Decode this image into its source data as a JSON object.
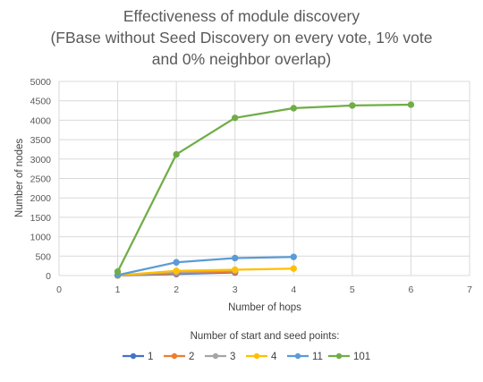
{
  "chart_data": {
    "type": "line",
    "title_lines": [
      "Effectiveness of module discovery",
      "(FBase without Seed Discovery on every vote, 1% vote",
      "and 0% neighbor overlap)"
    ],
    "xlabel": "Number of hops",
    "ylabel": "Number of nodes",
    "xlim": [
      0,
      7
    ],
    "ylim": [
      0,
      5000
    ],
    "x_ticks": [
      0,
      1,
      2,
      3,
      4,
      5,
      6,
      7
    ],
    "y_ticks": [
      0,
      500,
      1000,
      1500,
      2000,
      2500,
      3000,
      3500,
      4000,
      4500,
      5000
    ],
    "grid": true,
    "legend_title": "Number of start and seed points:",
    "legend_position": "bottom",
    "series": [
      {
        "name": "1",
        "color": "#4472C4",
        "x": [
          1,
          2,
          3
        ],
        "values": [
          1,
          40,
          80
        ]
      },
      {
        "name": "2",
        "color": "#ED7D31",
        "x": [
          1,
          2,
          3
        ],
        "values": [
          2,
          60,
          100
        ]
      },
      {
        "name": "3",
        "color": "#A5A5A5",
        "x": [
          1,
          2,
          3
        ],
        "values": [
          3,
          90,
          130
        ]
      },
      {
        "name": "4",
        "color": "#FFC000",
        "x": [
          1,
          2,
          3,
          4
        ],
        "values": [
          4,
          120,
          150,
          180
        ]
      },
      {
        "name": "11",
        "color": "#5B9BD5",
        "x": [
          1,
          2,
          3,
          4
        ],
        "values": [
          11,
          340,
          450,
          480
        ]
      },
      {
        "name": "101",
        "color": "#70AD47",
        "x": [
          1,
          2,
          3,
          4,
          5,
          6
        ],
        "values": [
          101,
          3120,
          4060,
          4310,
          4380,
          4400
        ]
      }
    ]
  }
}
